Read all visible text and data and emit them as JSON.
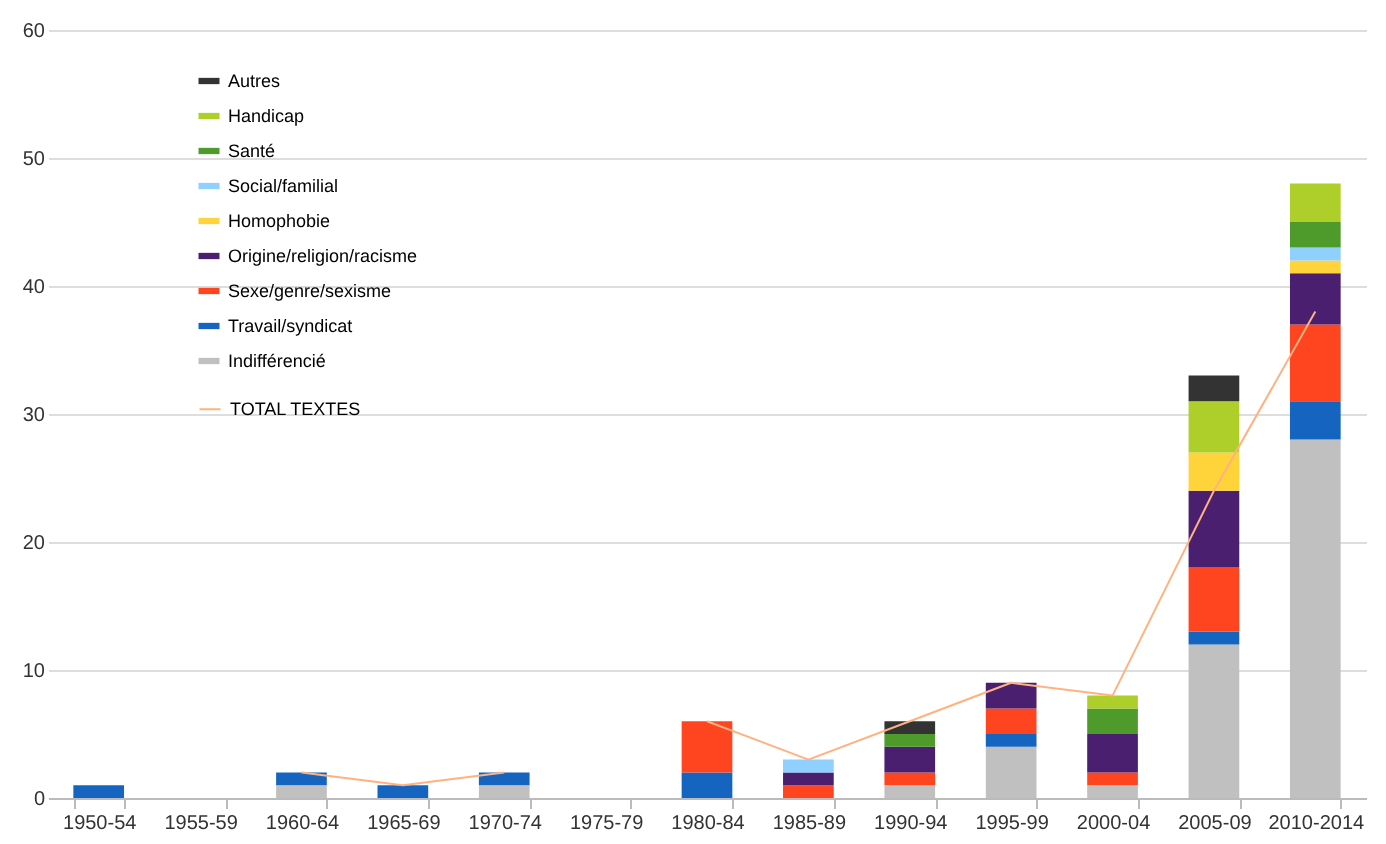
{
  "chart_data": {
    "type": "bar",
    "stacked": true,
    "categories": [
      "1950-54",
      "1955-59",
      "1960-64",
      "1965-69",
      "1970-74",
      "1975-79",
      "1980-84",
      "1985-89",
      "1990-94",
      "1995-99",
      "2000-04",
      "2005-09",
      "2010-2014"
    ],
    "series": [
      {
        "name": "Indifférencié",
        "color": "#c0c0c0",
        "values": [
          0,
          0,
          1,
          0,
          1,
          0,
          0,
          0,
          1,
          4,
          1,
          12,
          28
        ]
      },
      {
        "name": "Travail/syndicat",
        "color": "#1565c0",
        "values": [
          1,
          0,
          1,
          1,
          1,
          0,
          2,
          0,
          0,
          1,
          0,
          1,
          3
        ]
      },
      {
        "name": "Sexe/genre/sexisme",
        "color": "#ff4520",
        "values": [
          0,
          0,
          0,
          0,
          0,
          0,
          4,
          1,
          1,
          2,
          1,
          5,
          6
        ]
      },
      {
        "name": "Origine/religion/racisme",
        "color": "#4b1f6f",
        "values": [
          0,
          0,
          0,
          0,
          0,
          0,
          0,
          1,
          2,
          2,
          3,
          6,
          4
        ]
      },
      {
        "name": "Homophobie",
        "color": "#ffd33a",
        "values": [
          0,
          0,
          0,
          0,
          0,
          0,
          0,
          0,
          0,
          0,
          0,
          3,
          1
        ]
      },
      {
        "name": "Social/familial",
        "color": "#8fd0ff",
        "values": [
          0,
          0,
          0,
          0,
          0,
          0,
          0,
          1,
          0,
          0,
          0,
          0,
          1
        ]
      },
      {
        "name": "Santé",
        "color": "#4e9a2a",
        "values": [
          0,
          0,
          0,
          0,
          0,
          0,
          0,
          0,
          1,
          0,
          2,
          0,
          2
        ]
      },
      {
        "name": "Handicap",
        "color": "#aecf2a",
        "values": [
          0,
          0,
          0,
          0,
          0,
          0,
          0,
          0,
          0,
          0,
          1,
          4,
          3
        ]
      },
      {
        "name": "Autres",
        "color": "#333333",
        "values": [
          0,
          0,
          0,
          0,
          0,
          0,
          0,
          0,
          1,
          0,
          0,
          2,
          0
        ]
      },
      {
        "name": "TOTAL TEXTES",
        "type": "line",
        "color": "#ffb27f",
        "values": [
          null,
          null,
          2,
          1,
          2,
          null,
          6,
          3,
          6,
          9,
          8,
          24,
          38
        ]
      }
    ],
    "ylim": [
      0,
      60
    ],
    "yticks": [
      0,
      10,
      20,
      30,
      40,
      50,
      60
    ],
    "grid": "y",
    "legend": "top left"
  }
}
